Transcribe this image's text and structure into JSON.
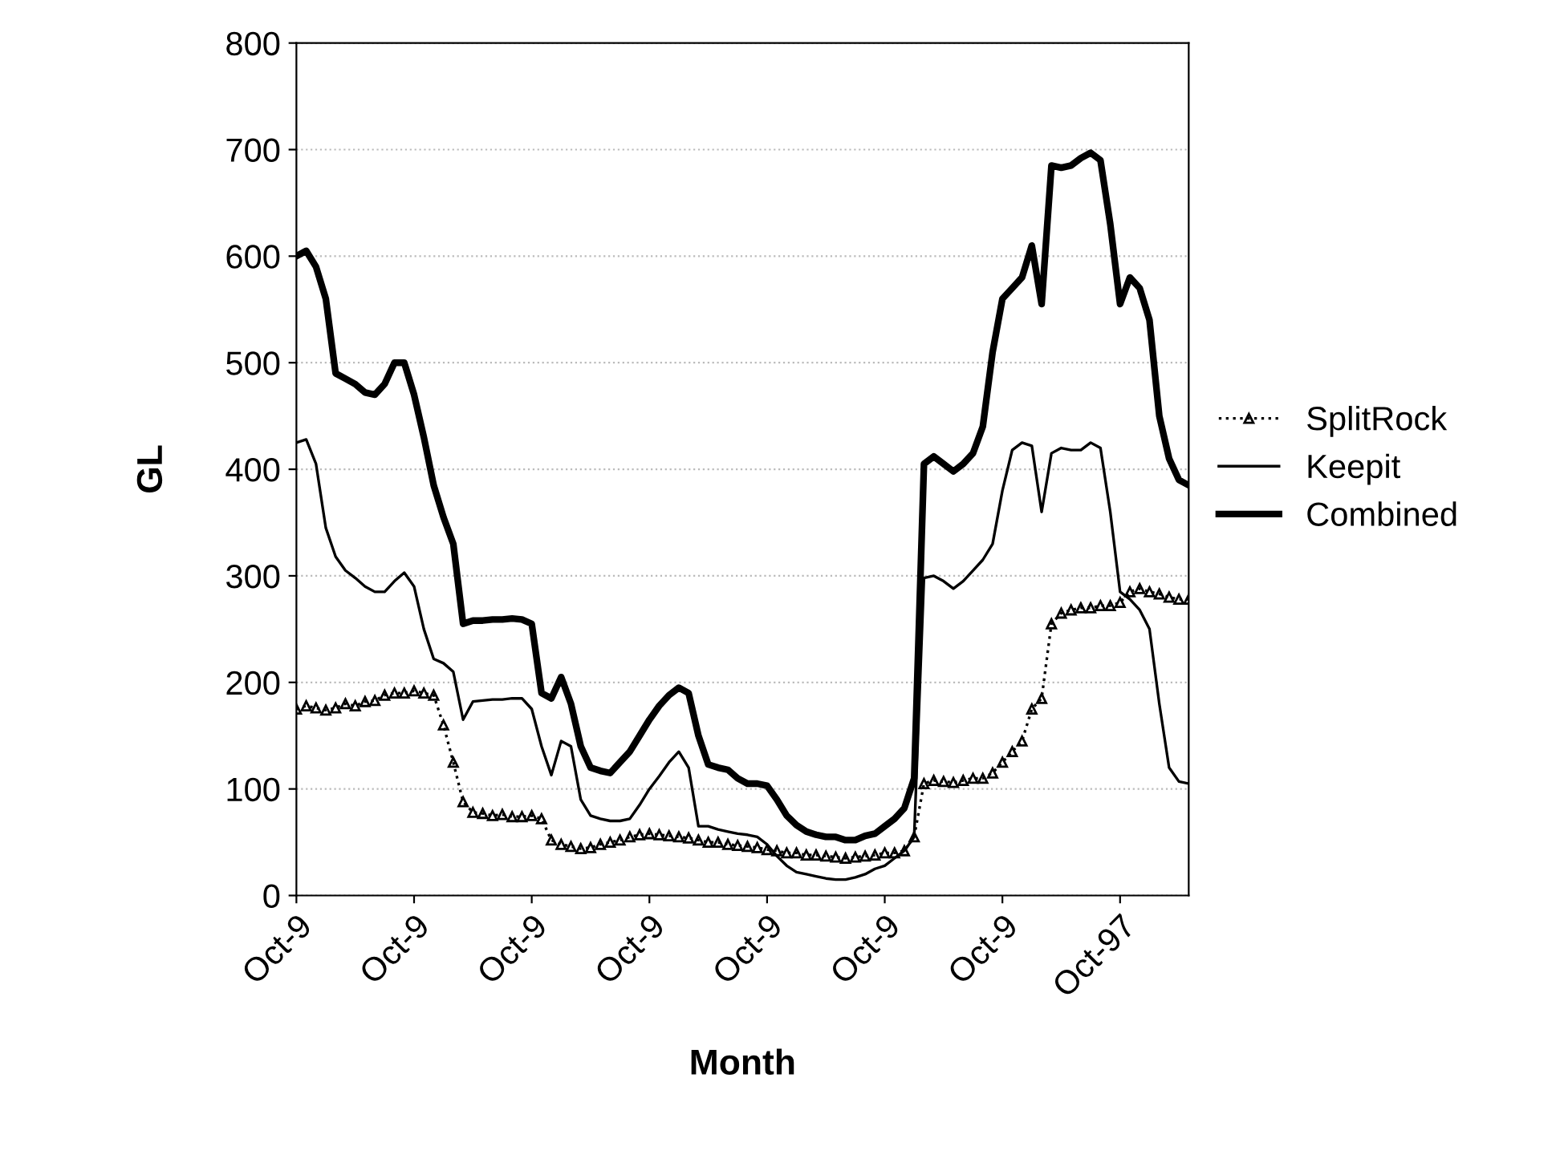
{
  "chart_data": {
    "type": "line",
    "xlabel": "Month",
    "ylabel": "GL",
    "categories": [
      "Oct-9",
      null,
      null,
      null,
      null,
      null,
      null,
      null,
      null,
      null,
      null,
      null,
      "Oct-9",
      null,
      null,
      null,
      null,
      null,
      null,
      null,
      null,
      null,
      null,
      null,
      "Oct-9",
      null,
      null,
      null,
      null,
      null,
      null,
      null,
      null,
      null,
      null,
      null,
      "Oct-9",
      null,
      null,
      null,
      null,
      null,
      null,
      null,
      null,
      null,
      null,
      null,
      "Oct-9",
      null,
      null,
      null,
      null,
      null,
      null,
      null,
      null,
      null,
      null,
      null,
      "Oct-9",
      null,
      null,
      null,
      null,
      null,
      null,
      null,
      null,
      null,
      null,
      null,
      "Oct-9",
      null,
      null,
      null,
      null,
      null,
      null,
      null,
      null,
      null,
      null,
      null,
      "Oct-97",
      null,
      null,
      null,
      null,
      null,
      null,
      null
    ],
    "series": [
      {
        "name": "SplitRock",
        "color": "#000000",
        "marker": "triangle",
        "line_style": "dotted",
        "values": [
          175,
          178,
          176,
          174,
          176,
          180,
          178,
          182,
          183,
          188,
          190,
          190,
          192,
          190,
          188,
          160,
          125,
          88,
          78,
          77,
          75,
          76,
          74,
          74,
          75,
          72,
          52,
          48,
          46,
          44,
          45,
          48,
          50,
          52,
          55,
          57,
          58,
          57,
          56,
          55,
          54,
          52,
          50,
          50,
          48,
          47,
          46,
          45,
          43,
          42,
          40,
          40,
          38,
          38,
          37,
          36,
          35,
          36,
          37,
          38,
          40,
          40,
          42,
          55,
          105,
          108,
          107,
          106,
          108,
          110,
          110,
          115,
          125,
          135,
          145,
          175,
          185,
          255,
          265,
          268,
          270,
          270,
          272,
          272,
          275,
          285,
          288,
          285,
          283,
          280,
          278,
          278
        ]
      },
      {
        "name": "Keepit",
        "color": "#000000",
        "marker": "none",
        "line_style": "solid",
        "values": [
          425,
          428,
          405,
          345,
          318,
          305,
          298,
          290,
          285,
          285,
          295,
          303,
          290,
          250,
          222,
          218,
          210,
          165,
          182,
          183,
          184,
          184,
          185,
          185,
          175,
          140,
          113,
          145,
          140,
          90,
          75,
          72,
          70,
          70,
          72,
          85,
          100,
          112,
          125,
          135,
          120,
          65,
          65,
          62,
          60,
          58,
          57,
          55,
          48,
          37,
          28,
          22,
          20,
          18,
          16,
          15,
          15,
          17,
          20,
          25,
          28,
          35,
          42,
          55,
          298,
          300,
          295,
          288,
          295,
          305,
          315,
          330,
          380,
          418,
          425,
          422,
          360,
          415,
          420,
          418,
          418,
          425,
          420,
          360,
          285,
          278,
          268,
          250,
          180,
          120,
          107,
          105
        ]
      },
      {
        "name": "Combined",
        "color": "#000000",
        "marker": "none",
        "line_style": "solid",
        "values": [
          600,
          605,
          590,
          560,
          490,
          485,
          480,
          472,
          470,
          480,
          500,
          500,
          470,
          430,
          385,
          355,
          330,
          255,
          258,
          258,
          259,
          259,
          260,
          259,
          255,
          190,
          185,
          205,
          180,
          140,
          120,
          117,
          115,
          125,
          135,
          150,
          165,
          178,
          188,
          195,
          190,
          150,
          123,
          120,
          118,
          110,
          105,
          105,
          103,
          90,
          75,
          66,
          60,
          57,
          55,
          55,
          52,
          52,
          56,
          58,
          65,
          72,
          82,
          110,
          405,
          412,
          405,
          398,
          405,
          415,
          440,
          510,
          560,
          570,
          580,
          610,
          555,
          685,
          683,
          685,
          692,
          697,
          690,
          630,
          555,
          580,
          570,
          540,
          450,
          410,
          390,
          385
        ]
      }
    ],
    "ylim": [
      0,
      800
    ],
    "yticks": [
      0,
      100,
      200,
      300,
      400,
      500,
      600,
      700,
      800
    ],
    "grid": "y",
    "legend": "right"
  }
}
